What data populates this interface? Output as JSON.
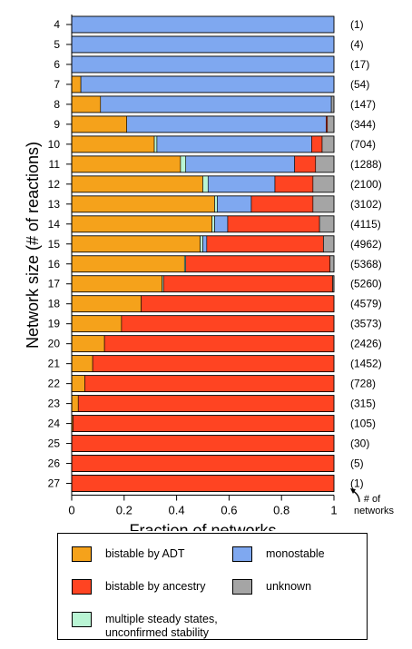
{
  "chart_data": {
    "type": "bar",
    "orientation": "horizontal",
    "stacked": true,
    "ylabel": "Network size (# of reactions)",
    "xlabel": "Fraction of networks",
    "xlim": [
      0,
      1
    ],
    "xticks": [
      "0",
      "0.2",
      "0.4",
      "0.6",
      "0.8",
      "1"
    ],
    "count_annotation": "# of\nnetworks",
    "categories": [
      "4",
      "5",
      "6",
      "7",
      "8",
      "9",
      "10",
      "11",
      "12",
      "13",
      "14",
      "15",
      "16",
      "17",
      "18",
      "19",
      "20",
      "21",
      "22",
      "23",
      "24",
      "25",
      "26",
      "27"
    ],
    "counts": [
      "(1)",
      "(4)",
      "(17)",
      "(54)",
      "(147)",
      "(344)",
      "(704)",
      "(1288)",
      "(2100)",
      "(3102)",
      "(4115)",
      "(4962)",
      "(5368)",
      "(5260)",
      "(4579)",
      "(3573)",
      "(2426)",
      "(1452)",
      "(728)",
      "(315)",
      "(105)",
      "(30)",
      "(5)",
      "(1)"
    ],
    "series": [
      {
        "name": "bistable by ADT",
        "color": "#f5a21b",
        "values": [
          0,
          0,
          0,
          0.035,
          0.11,
          0.21,
          0.315,
          0.415,
          0.5,
          0.545,
          0.535,
          0.49,
          0.43,
          0.345,
          0.265,
          0.19,
          0.125,
          0.08,
          0.05,
          0.025,
          0.005,
          0,
          0,
          0
        ]
      },
      {
        "name": "multiple steady states, unconfirmed stability",
        "color": "#b9f5d4",
        "values": [
          0,
          0,
          0,
          0,
          0,
          0,
          0.01,
          0.02,
          0.02,
          0.01,
          0.01,
          0.01,
          0.005,
          0.005,
          0,
          0,
          0,
          0,
          0,
          0,
          0,
          0,
          0,
          0
        ]
      },
      {
        "name": "monostable",
        "color": "#7fa8f0",
        "values": [
          1,
          1,
          1,
          0.965,
          0.88,
          0.76,
          0.59,
          0.415,
          0.255,
          0.13,
          0.05,
          0.015,
          0,
          0,
          0,
          0,
          0,
          0,
          0,
          0,
          0,
          0,
          0,
          0
        ]
      },
      {
        "name": "bistable by ancestry",
        "color": "#ff4422",
        "values": [
          0,
          0,
          0,
          0,
          0,
          0.005,
          0.04,
          0.08,
          0.145,
          0.235,
          0.35,
          0.445,
          0.55,
          0.645,
          0.735,
          0.81,
          0.875,
          0.92,
          0.95,
          0.975,
          0.995,
          1,
          1,
          1
        ]
      },
      {
        "name": "unknown",
        "color": "#a5a5a5",
        "values": [
          0,
          0,
          0,
          0,
          0.01,
          0.025,
          0.045,
          0.07,
          0.08,
          0.08,
          0.055,
          0.04,
          0.015,
          0.005,
          0,
          0,
          0,
          0,
          0,
          0,
          0,
          0,
          0,
          0
        ]
      }
    ]
  },
  "legend": {
    "items": [
      {
        "label": "bistable by ADT",
        "color": "#f5a21b"
      },
      {
        "label": "monostable",
        "color": "#7fa8f0"
      },
      {
        "label": "bistable by ancestry",
        "color": "#ff4422"
      },
      {
        "label": "unknown",
        "color": "#a5a5a5"
      },
      {
        "label": "multiple steady states,\nunconfirmed stability",
        "color": "#b9f5d4"
      }
    ]
  }
}
